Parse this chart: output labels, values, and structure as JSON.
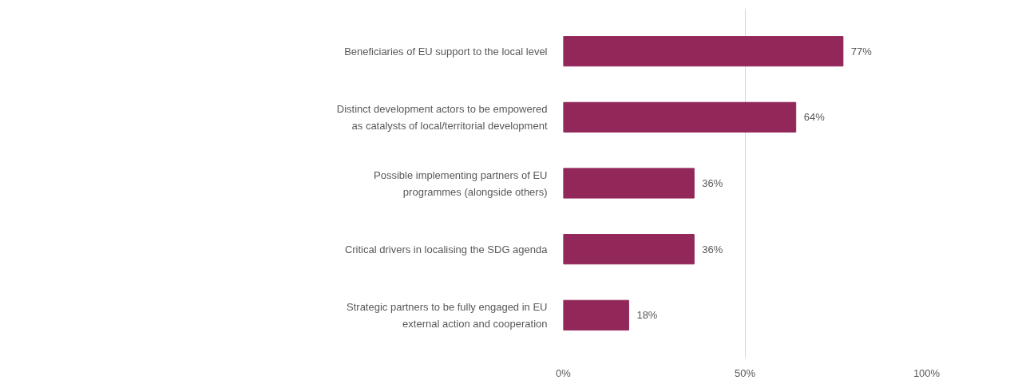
{
  "chart_data": {
    "type": "bar",
    "orientation": "horizontal",
    "categories": [
      "Beneficiaries of EU support to the local level",
      "Distinct development actors to be empowered as catalysts of local/territorial development",
      "Possible implementing partners of EU programmes (alongside others)",
      "Critical drivers in localising the SDG agenda",
      "Strategic partners to be fully engaged in EU external action and cooperation"
    ],
    "values": [
      77,
      64,
      36,
      36,
      18
    ],
    "value_labels": [
      "77%",
      "64%",
      "36%",
      "36%",
      "18%"
    ],
    "color": "#92275a",
    "xlim": [
      0,
      100
    ],
    "xticks": [
      {
        "value": 0,
        "label": "0%"
      },
      {
        "value": 50,
        "label": "50%"
      },
      {
        "value": 100,
        "label": "100%"
      }
    ],
    "grid": "x",
    "legend": false
  }
}
